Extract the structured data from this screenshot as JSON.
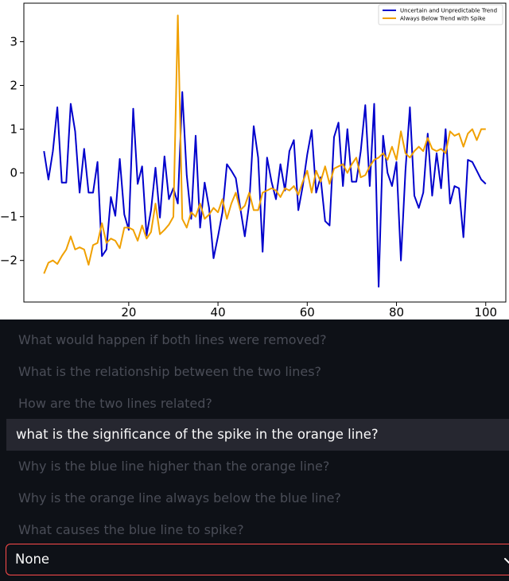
{
  "chart_data": {
    "type": "line",
    "x": [
      1,
      2,
      3,
      4,
      5,
      6,
      7,
      8,
      9,
      10,
      11,
      12,
      13,
      14,
      15,
      16,
      17,
      18,
      19,
      20,
      21,
      22,
      23,
      24,
      25,
      26,
      27,
      28,
      29,
      30,
      31,
      32,
      33,
      34,
      35,
      36,
      37,
      38,
      39,
      40,
      41,
      42,
      43,
      44,
      45,
      46,
      47,
      48,
      49,
      50,
      51,
      52,
      53,
      54,
      55,
      56,
      57,
      58,
      59,
      60,
      61,
      62,
      63,
      64,
      65,
      66,
      67,
      68,
      69,
      70,
      71,
      72,
      73,
      74,
      75,
      76,
      77,
      78,
      79,
      80,
      81,
      82,
      83,
      84,
      85,
      86,
      87,
      88,
      89,
      90,
      91,
      92,
      93,
      94,
      95,
      96,
      97,
      98,
      99,
      100
    ],
    "series": [
      {
        "name": "Uncertain and Unpredictable Trend",
        "color": "#0000cc",
        "values": [
          0.5,
          -0.15,
          0.5,
          1.5,
          -0.22,
          -0.22,
          1.58,
          0.95,
          -0.45,
          0.55,
          -0.45,
          -0.45,
          0.25,
          -1.9,
          -1.75,
          -0.55,
          -0.98,
          0.32,
          -0.95,
          -1.3,
          1.47,
          -0.25,
          0.15,
          -1.43,
          -0.85,
          0.12,
          -1.02,
          0.38,
          -0.6,
          -0.35,
          -0.7,
          1.85,
          -0.05,
          -1.05,
          0.85,
          -1.25,
          -0.22,
          -0.8,
          -1.95,
          -1.45,
          -0.9,
          0.2,
          0.05,
          -0.12,
          -0.8,
          -1.45,
          -0.7,
          1.07,
          0.35,
          -1.8,
          0.35,
          -0.2,
          -0.6,
          0.2,
          -0.4,
          0.5,
          0.75,
          -0.85,
          -0.3,
          0.42,
          0.98,
          -0.45,
          -0.1,
          -1.1,
          -1.2,
          0.82,
          1.15,
          -0.3,
          1.0,
          -0.2,
          -0.2,
          0.5,
          1.55,
          -0.3,
          1.58,
          -2.6,
          0.85,
          0.0,
          -0.3,
          0.25,
          -2.0,
          0.05,
          1.5,
          -0.52,
          -0.8,
          -0.45,
          0.9,
          -0.52,
          0.45,
          -0.35,
          1.0,
          -0.7,
          -0.3,
          -0.35,
          -1.47,
          0.3,
          0.25,
          0.05,
          -0.15,
          -0.25
        ]
      },
      {
        "name": "Always Below Trend with Spike",
        "color": "#f0a000",
        "values": [
          -2.3,
          -2.05,
          -2.0,
          -2.08,
          -1.9,
          -1.75,
          -1.45,
          -1.75,
          -1.7,
          -1.75,
          -2.1,
          -1.65,
          -1.6,
          -1.15,
          -1.6,
          -1.5,
          -1.55,
          -1.72,
          -1.25,
          -1.25,
          -1.3,
          -1.55,
          -1.2,
          -1.5,
          -1.35,
          -0.7,
          -1.4,
          -1.3,
          -1.18,
          -1.0,
          3.6,
          -1.05,
          -1.25,
          -0.9,
          -1.0,
          -0.7,
          -1.05,
          -0.95,
          -0.8,
          -0.9,
          -0.6,
          -1.05,
          -0.7,
          -0.45,
          -0.85,
          -0.75,
          -0.45,
          -0.85,
          -0.85,
          -0.45,
          -0.4,
          -0.35,
          -0.4,
          -0.55,
          -0.35,
          -0.4,
          -0.3,
          -0.5,
          -0.2,
          0.05,
          -0.45,
          0.05,
          -0.2,
          0.15,
          -0.25,
          0.1,
          0.15,
          0.2,
          0.0,
          0.2,
          0.35,
          -0.1,
          -0.05,
          0.15,
          0.3,
          0.35,
          0.45,
          0.3,
          0.6,
          0.3,
          0.95,
          0.45,
          0.35,
          0.5,
          0.6,
          0.5,
          0.8,
          0.55,
          0.5,
          0.55,
          0.45,
          0.95,
          0.85,
          0.9,
          0.6,
          0.9,
          1.0,
          0.75,
          1.0,
          1.0
        ]
      }
    ],
    "xlim": [
      -3.5,
      104.5
    ],
    "ylim": [
      -2.95,
      3.88
    ],
    "xticks": [
      20,
      40,
      60,
      80,
      100
    ],
    "yticks": [
      -2,
      -1,
      0,
      1,
      2,
      3
    ],
    "ytick_labels": [
      "−2",
      "−1",
      "0",
      "1",
      "2",
      "3"
    ],
    "xlabel": "",
    "ylabel": "",
    "title": "",
    "grid": false,
    "legend": "top-right"
  },
  "questions": [
    "What would happen if both lines were removed?",
    "What is the relationship between the two lines?",
    "How are the two lines related?",
    "what is the significance of the spike in the orange line?",
    "Why is the blue line higher than the orange line?",
    "Why is the orange line always below the blue line?",
    "What causes the blue line to spike?"
  ],
  "selected_question_index": 3,
  "select": {
    "value": "None"
  }
}
